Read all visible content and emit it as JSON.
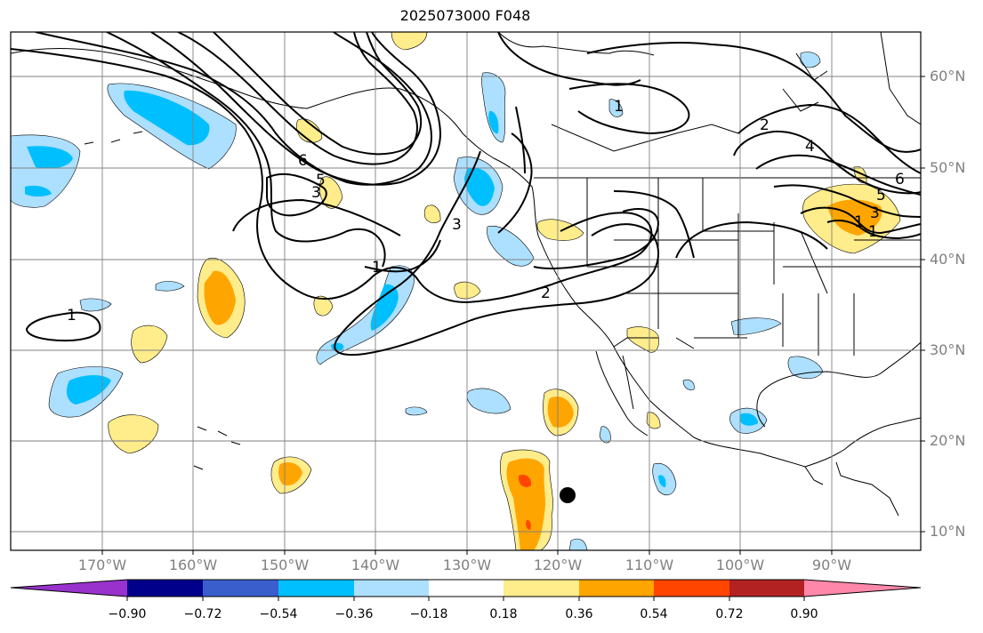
{
  "title": "2025073000 F048",
  "lat_labels": [
    "60°N",
    "50°N",
    "40°N",
    "30°N",
    "20°N",
    "10°N"
  ],
  "lon_labels": [
    "170°W",
    "160°W",
    "150°W",
    "140°W",
    "130°W",
    "120°W",
    "110°W",
    "100°W",
    "90°W"
  ],
  "colorbar": {
    "ticks": [
      "−0.90",
      "−0.72",
      "−0.54",
      "−0.36",
      "−0.18",
      "0.18",
      "0.36",
      "0.54",
      "0.72",
      "0.90"
    ],
    "colors": [
      "#9932CC",
      "#00008B",
      "#3A5FCD",
      "#00BFFF",
      "#ADDFFF",
      "#FFFFFF",
      "#FFEC8B",
      "#FFA500",
      "#FF4500",
      "#B22222",
      "#FF88AA"
    ]
  },
  "contour_labels": [
    "1",
    "1",
    "6",
    "5",
    "3",
    "3",
    "1",
    "2",
    "1",
    "2",
    "4",
    "6",
    "5",
    "3",
    "1"
  ],
  "colors": {
    "grid": "#808080",
    "axis_text": "#808080",
    "marker": "#000000"
  }
}
